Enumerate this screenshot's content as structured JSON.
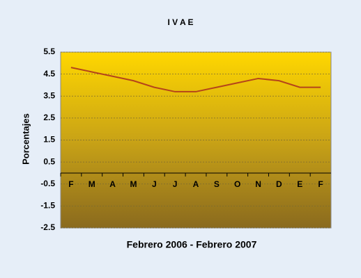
{
  "chart_data": {
    "type": "line",
    "title": "I V A E",
    "x_label": "Febrero 2006 - Febrero 2007",
    "y_label": "Porcentajes",
    "categories": [
      "F",
      "M",
      "A",
      "M",
      "J",
      "J",
      "A",
      "S",
      "O",
      "N",
      "D",
      "E",
      "F"
    ],
    "series": [
      {
        "name": "IVAE",
        "color": "#b5441a",
        "values": [
          4.8,
          4.6,
          4.4,
          4.2,
          3.9,
          3.7,
          3.7,
          3.9,
          4.1,
          4.3,
          4.2,
          3.9,
          3.9
        ]
      }
    ],
    "ylim": [
      -2.5,
      5.5
    ],
    "yticks": [
      -2.5,
      -1.5,
      -0.5,
      0.5,
      1.5,
      2.5,
      3.5,
      4.5,
      5.5
    ],
    "grid": true
  }
}
